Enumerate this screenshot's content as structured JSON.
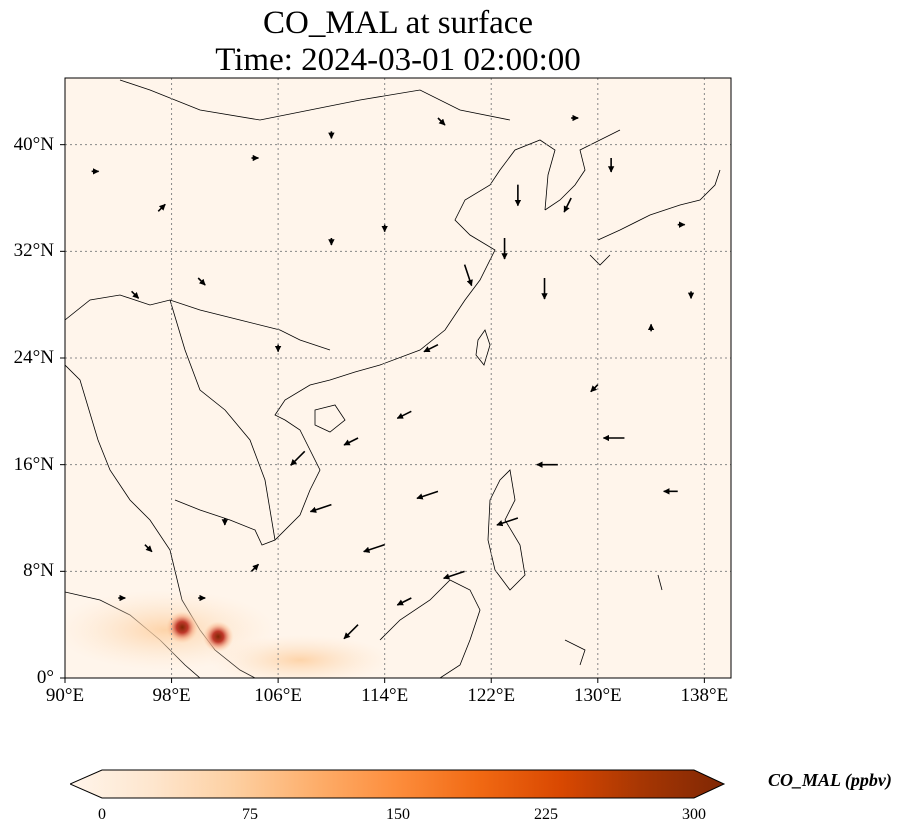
{
  "title": {
    "line1": "CO_MAL at surface",
    "line2": "Time: 2024-03-01 02:00:00"
  },
  "map": {
    "lon_range": [
      90,
      140
    ],
    "lat_range": [
      0,
      45
    ],
    "gridlines": "dotted",
    "x_ticks": [
      {
        "value": 90,
        "label": "90°E"
      },
      {
        "value": 98,
        "label": "98°E"
      },
      {
        "value": 106,
        "label": "106°E"
      },
      {
        "value": 114,
        "label": "114°E"
      },
      {
        "value": 122,
        "label": "122°E"
      },
      {
        "value": 130,
        "label": "130°E"
      },
      {
        "value": 138,
        "label": "138°E"
      }
    ],
    "y_ticks": [
      {
        "value": 0,
        "label": "0°"
      },
      {
        "value": 8,
        "label": "8°N"
      },
      {
        "value": 16,
        "label": "16°N"
      },
      {
        "value": 24,
        "label": "24°N"
      },
      {
        "value": 32,
        "label": "32°N"
      },
      {
        "value": 40,
        "label": "40°N"
      }
    ],
    "background_color": "#fff5eb",
    "hotspots": [
      {
        "lon": 98.8,
        "lat": 3.8,
        "value": 300
      },
      {
        "lon": 101.5,
        "lat": 3.1,
        "value": 280
      }
    ],
    "wind_vectors": [
      {
        "lon": 95.0,
        "lat": 29.0,
        "u": 1,
        "v": -1
      },
      {
        "lon": 100.0,
        "lat": 30.0,
        "u": 1,
        "v": -1
      },
      {
        "lon": 110.0,
        "lat": 33.0,
        "u": 0,
        "v": -1
      },
      {
        "lon": 114.0,
        "lat": 34.0,
        "u": 0,
        "v": -1
      },
      {
        "lon": 120.0,
        "lat": 31.0,
        "u": 1,
        "v": -3
      },
      {
        "lon": 124.0,
        "lat": 37.0,
        "u": 0,
        "v": -3
      },
      {
        "lon": 123.0,
        "lat": 33.0,
        "u": 0,
        "v": -3
      },
      {
        "lon": 126.0,
        "lat": 30.0,
        "u": 0,
        "v": -3
      },
      {
        "lon": 128.0,
        "lat": 36.0,
        "u": -1,
        "v": -2
      },
      {
        "lon": 131.0,
        "lat": 39.0,
        "u": 0,
        "v": -2
      },
      {
        "lon": 118.0,
        "lat": 25.0,
        "u": -2,
        "v": -1
      },
      {
        "lon": 116.0,
        "lat": 20.0,
        "u": -2,
        "v": -1
      },
      {
        "lon": 112.0,
        "lat": 18.0,
        "u": -2,
        "v": -1
      },
      {
        "lon": 108.0,
        "lat": 17.0,
        "u": -2,
        "v": -2
      },
      {
        "lon": 110.0,
        "lat": 13.0,
        "u": -3,
        "v": -1
      },
      {
        "lon": 114.0,
        "lat": 10.0,
        "u": -3,
        "v": -1
      },
      {
        "lon": 118.0,
        "lat": 14.0,
        "u": -3,
        "v": -1
      },
      {
        "lon": 112.0,
        "lat": 4.0,
        "u": -2,
        "v": -2
      },
      {
        "lon": 116.0,
        "lat": 6.0,
        "u": -2,
        "v": -1
      },
      {
        "lon": 120.0,
        "lat": 8.0,
        "u": -3,
        "v": -1
      },
      {
        "lon": 124.0,
        "lat": 12.0,
        "u": -3,
        "v": -1
      },
      {
        "lon": 127.0,
        "lat": 16.0,
        "u": -3,
        "v": 0
      },
      {
        "lon": 132.0,
        "lat": 18.0,
        "u": -3,
        "v": 0
      },
      {
        "lon": 136.0,
        "lat": 14.0,
        "u": -2,
        "v": 0
      },
      {
        "lon": 130.0,
        "lat": 22.0,
        "u": -1,
        "v": -1
      },
      {
        "lon": 134.0,
        "lat": 26.0,
        "u": 0,
        "v": 1
      },
      {
        "lon": 137.0,
        "lat": 29.0,
        "u": 0,
        "v": -1
      },
      {
        "lon": 102.0,
        "lat": 12.0,
        "u": 0,
        "v": -1
      },
      {
        "lon": 96.0,
        "lat": 10.0,
        "u": 1,
        "v": -1
      },
      {
        "lon": 94.0,
        "lat": 6.0,
        "u": 1,
        "v": 0
      },
      {
        "lon": 100.0,
        "lat": 6.0,
        "u": 1,
        "v": 0
      },
      {
        "lon": 104.0,
        "lat": 8.0,
        "u": 1,
        "v": 1
      },
      {
        "lon": 92.0,
        "lat": 38.0,
        "u": 1,
        "v": 0
      },
      {
        "lon": 97.0,
        "lat": 35.0,
        "u": 1,
        "v": 1
      },
      {
        "lon": 104.0,
        "lat": 39.0,
        "u": 1,
        "v": 0
      },
      {
        "lon": 110.0,
        "lat": 41.0,
        "u": 0,
        "v": -1
      },
      {
        "lon": 118.0,
        "lat": 42.0,
        "u": 1,
        "v": -1
      },
      {
        "lon": 128.0,
        "lat": 42.0,
        "u": 1,
        "v": 0
      },
      {
        "lon": 136.0,
        "lat": 34.0,
        "u": 1,
        "v": 0
      },
      {
        "lon": 106.0,
        "lat": 25.0,
        "u": 0,
        "v": -1
      }
    ]
  },
  "colorbar": {
    "colors": [
      "#fff5eb",
      "#fee6ce",
      "#fdd0a2",
      "#fdae6b",
      "#fd8d3c",
      "#f16913",
      "#d94801",
      "#a63603",
      "#7f2704"
    ],
    "ticks": [
      {
        "value": 0,
        "label": "0"
      },
      {
        "value": 75,
        "label": "75"
      },
      {
        "value": 150,
        "label": "150"
      },
      {
        "value": 225,
        "label": "225"
      },
      {
        "value": 300,
        "label": "300"
      }
    ],
    "min": 0,
    "max": 300,
    "label": "CO_MAL (ppbv)"
  }
}
